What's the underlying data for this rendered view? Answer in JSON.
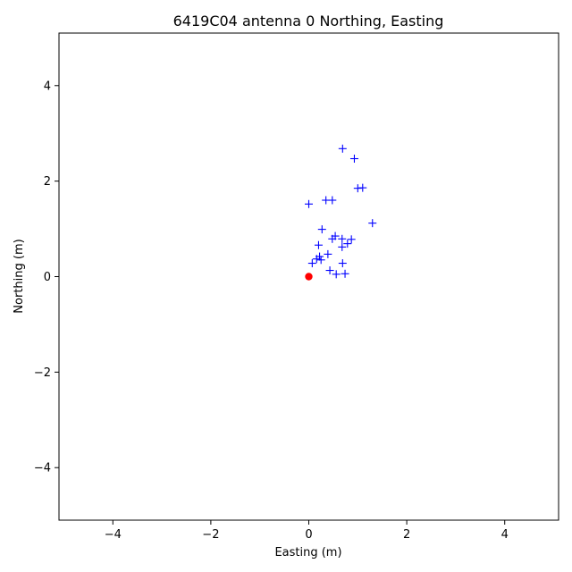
{
  "chart_data": {
    "type": "scatter",
    "title": "6419C04 antenna 0 Northing, Easting",
    "xlabel": "Easting (m)",
    "ylabel": "Northing (m)",
    "xlim": [
      -5.1,
      5.1
    ],
    "ylim": [
      -5.1,
      5.1
    ],
    "xticks": [
      -4,
      -2,
      0,
      2,
      4
    ],
    "yticks": [
      -4,
      -2,
      0,
      2,
      4
    ],
    "xtick_labels": [
      "−4",
      "−2",
      "0",
      "2",
      "4"
    ],
    "ytick_labels": [
      "−4",
      "−2",
      "0",
      "2",
      "4"
    ],
    "grid": false,
    "series": [
      {
        "marker": "plus",
        "color": "#0000ff",
        "points": [
          [
            0.69,
            2.68
          ],
          [
            0.93,
            2.47
          ],
          [
            1.0,
            1.85
          ],
          [
            1.1,
            1.86
          ],
          [
            0.0,
            1.52
          ],
          [
            0.35,
            1.6
          ],
          [
            0.48,
            1.6
          ],
          [
            1.3,
            1.12
          ],
          [
            0.27,
            0.99
          ],
          [
            0.54,
            0.85
          ],
          [
            0.48,
            0.79
          ],
          [
            0.68,
            0.79
          ],
          [
            0.87,
            0.78
          ],
          [
            0.79,
            0.69
          ],
          [
            0.68,
            0.62
          ],
          [
            0.2,
            0.66
          ],
          [
            0.39,
            0.47
          ],
          [
            0.22,
            0.42
          ],
          [
            0.16,
            0.37
          ],
          [
            0.25,
            0.35
          ],
          [
            0.07,
            0.28
          ],
          [
            0.69,
            0.28
          ],
          [
            0.43,
            0.13
          ],
          [
            0.56,
            0.05
          ],
          [
            0.74,
            0.06
          ]
        ]
      },
      {
        "marker": "circle",
        "color": "#ff0000",
        "points": [
          [
            0.0,
            0.0
          ]
        ]
      }
    ]
  }
}
